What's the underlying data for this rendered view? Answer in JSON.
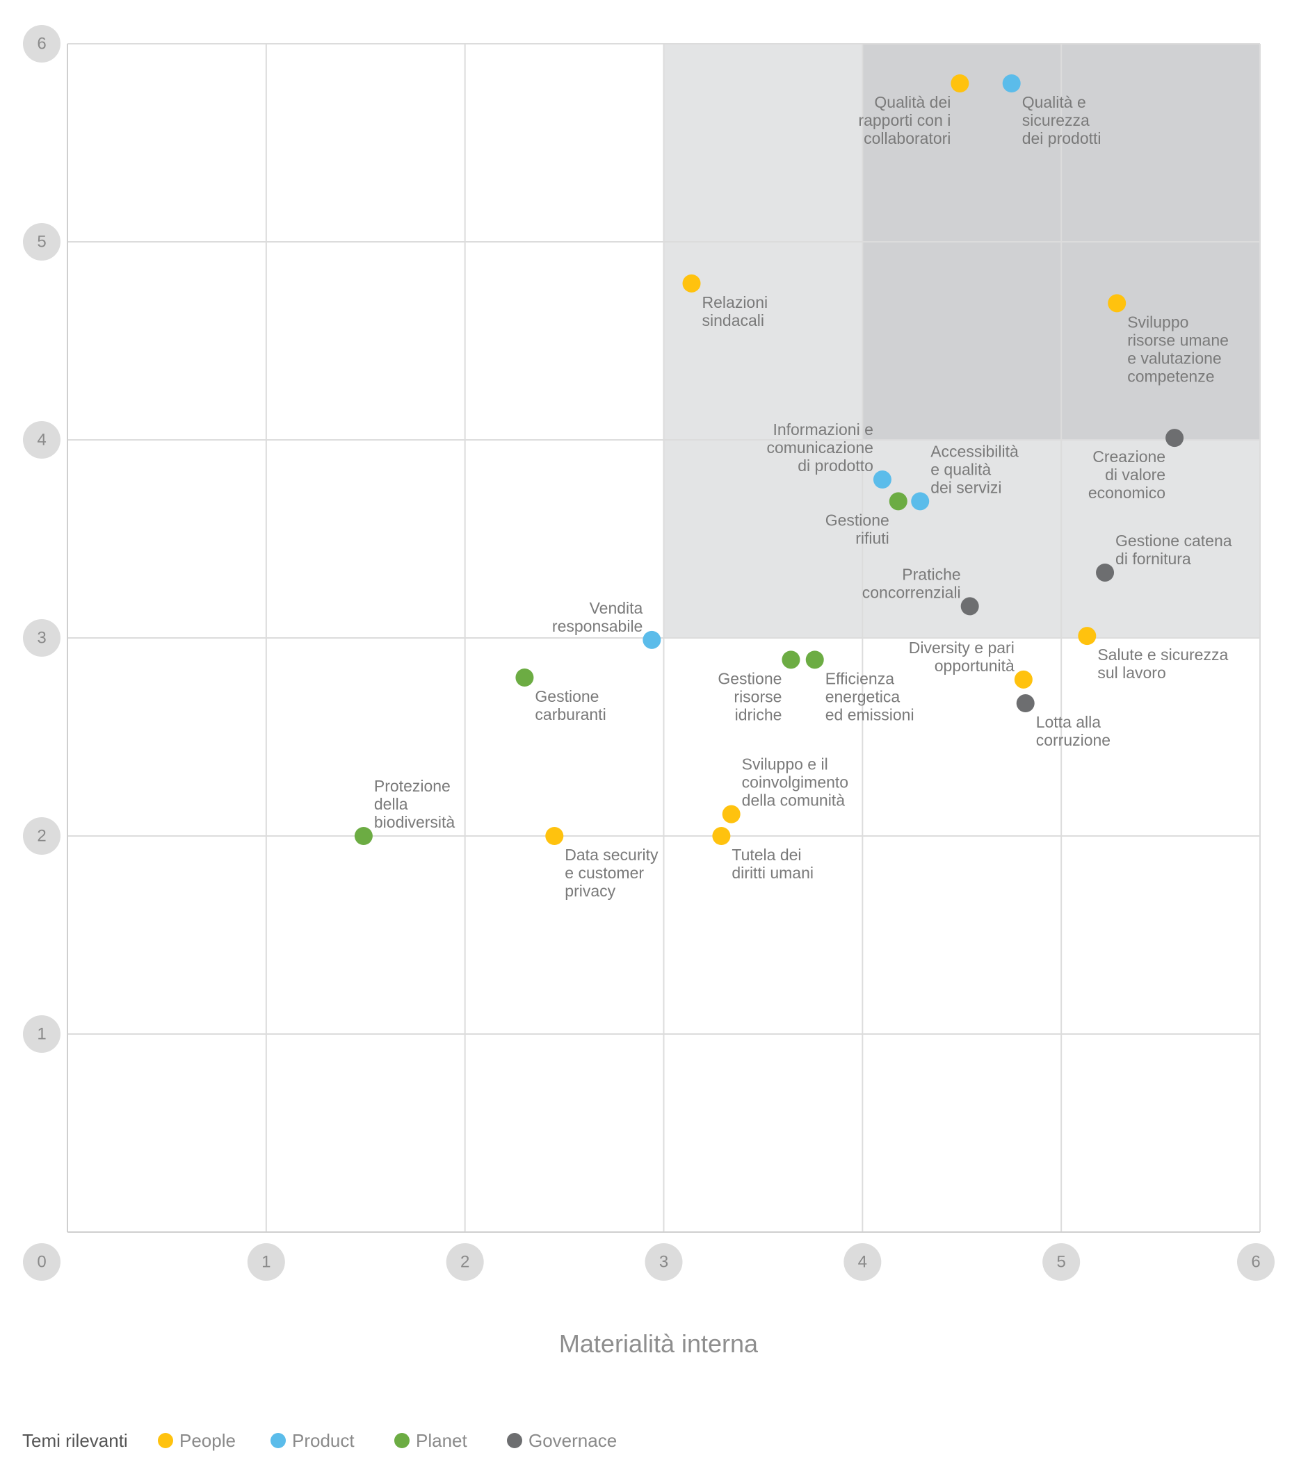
{
  "chart_data": {
    "type": "scatter",
    "title": "",
    "xlabel": "Materialità interna",
    "ylabel": "",
    "xlim": [
      0,
      6
    ],
    "ylim": [
      0,
      6
    ],
    "x_ticks": [
      0,
      1,
      2,
      3,
      4,
      5,
      6
    ],
    "y_ticks": [
      1,
      2,
      3,
      4,
      5,
      6
    ],
    "grid": true,
    "highlight_regions": [
      {
        "x": [
          3,
          6
        ],
        "y": [
          3,
          6
        ],
        "color": "#e3e4e5"
      },
      {
        "x": [
          4,
          6
        ],
        "y": [
          4,
          6
        ],
        "color": "#d0d1d3"
      }
    ],
    "legend": {
      "title": "Temi rilevanti",
      "position": "bottom-left",
      "entries": [
        {
          "label": "People",
          "color": "#ffc20e"
        },
        {
          "label": "Product",
          "color": "#5bbcea"
        },
        {
          "label": "Planet",
          "color": "#6cac43"
        },
        {
          "label": "Governace",
          "color": "#6d6e70"
        }
      ]
    },
    "points": [
      {
        "category": "People",
        "x": 4.49,
        "y": 5.8,
        "label": [
          "Qualità dei",
          "rapporti con i",
          "collaboratori"
        ],
        "label_pos": "below-left"
      },
      {
        "category": "Product",
        "x": 4.75,
        "y": 5.8,
        "label": [
          "Qualità e",
          "sicurezza",
          "dei prodotti"
        ],
        "label_pos": "below-right"
      },
      {
        "category": "People",
        "x": 3.14,
        "y": 4.79,
        "label": [
          "Relazioni",
          "sindacali"
        ],
        "label_pos": "below-right"
      },
      {
        "category": "People",
        "x": 5.28,
        "y": 4.69,
        "label": [
          "Sviluppo",
          "risorse umane",
          "e valutazione",
          "competenze"
        ],
        "label_pos": "below-right"
      },
      {
        "category": "Governace",
        "x": 5.57,
        "y": 4.01,
        "label": [
          "Creazione",
          "di valore",
          "economico"
        ],
        "label_pos": "below-left"
      },
      {
        "category": "Product",
        "x": 4.1,
        "y": 3.8,
        "label": [
          "Informazioni e",
          "comunicazione",
          "di prodotto"
        ],
        "label_pos": "above-left"
      },
      {
        "category": "Planet",
        "x": 4.18,
        "y": 3.69,
        "label": [
          "Gestione",
          "rifiuti"
        ],
        "label_pos": "below-left"
      },
      {
        "category": "Product",
        "x": 4.29,
        "y": 3.69,
        "label": [
          "Accessibilità",
          "e qualità",
          "dei servizi"
        ],
        "label_pos": "above-right"
      },
      {
        "category": "Governace",
        "x": 5.22,
        "y": 3.33,
        "label": [
          "Gestione catena",
          "di fornitura"
        ],
        "label_pos": "above-right"
      },
      {
        "category": "Governace",
        "x": 4.54,
        "y": 3.16,
        "label": [
          "Pratiche",
          "concorrenziali"
        ],
        "label_pos": "above-left"
      },
      {
        "category": "Product",
        "x": 2.94,
        "y": 2.99,
        "label": [
          "Vendita",
          "responsabile"
        ],
        "label_pos": "above-left"
      },
      {
        "category": "People",
        "x": 5.13,
        "y": 3.01,
        "label": [
          "Salute e sicurezza",
          "sul lavoro"
        ],
        "label_pos": "below-right"
      },
      {
        "category": "Planet",
        "x": 2.3,
        "y": 2.8,
        "label": [
          "Gestione",
          "carburanti"
        ],
        "label_pos": "below-right"
      },
      {
        "category": "Planet",
        "x": 3.64,
        "y": 2.89,
        "label": [
          "Gestione",
          "risorse",
          "idriche"
        ],
        "label_pos": "below-left"
      },
      {
        "category": "Planet",
        "x": 3.76,
        "y": 2.89,
        "label": [
          "Efficienza",
          "energetica",
          "ed emissioni"
        ],
        "label_pos": "below-right"
      },
      {
        "category": "People",
        "x": 4.81,
        "y": 2.79,
        "label": [
          "Diversity e pari",
          "opportunità"
        ],
        "label_pos": "above-left"
      },
      {
        "category": "Governace",
        "x": 4.82,
        "y": 2.67,
        "label": [
          "Lotta alla",
          "corruzione"
        ],
        "label_pos": "below-right"
      },
      {
        "category": "People",
        "x": 3.34,
        "y": 2.11,
        "label": [
          "Sviluppo e il",
          "coinvolgimento",
          "della comunità"
        ],
        "label_pos": "above-right"
      },
      {
        "category": "Planet",
        "x": 1.49,
        "y": 2.0,
        "label": [
          "Protezione",
          "della",
          "biodiversità"
        ],
        "label_pos": "above-right"
      },
      {
        "category": "People",
        "x": 2.45,
        "y": 2.0,
        "label": [
          "Data security",
          "e customer",
          "privacy"
        ],
        "label_pos": "below-right"
      },
      {
        "category": "People",
        "x": 3.29,
        "y": 2.0,
        "label": [
          "Tutela dei",
          "diritti umani"
        ],
        "label_pos": "below-right"
      }
    ]
  }
}
